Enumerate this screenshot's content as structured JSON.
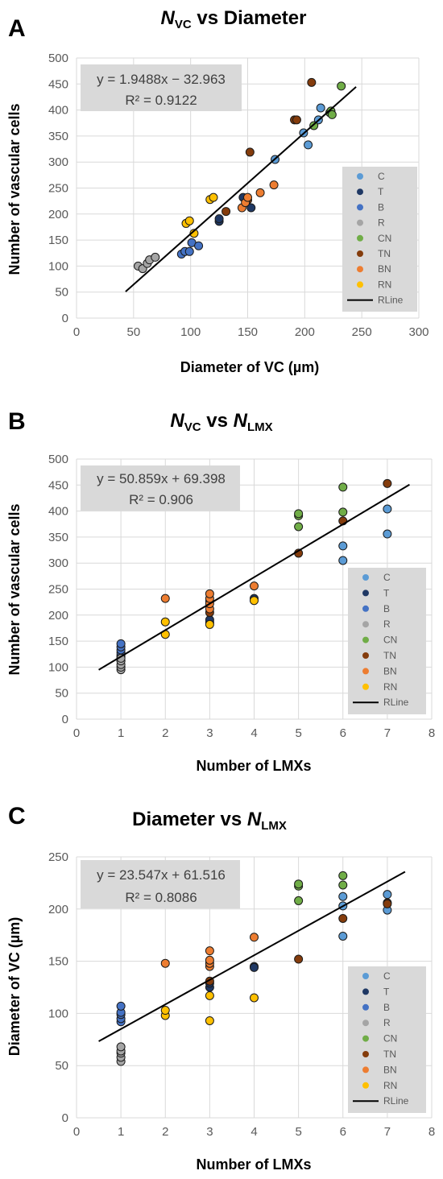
{
  "colors": {
    "C": "#5b9bd5",
    "T": "#1f3864",
    "B": "#4472c4",
    "R": "#a5a5a5",
    "CN": "#70ad47",
    "TN": "#843c0c",
    "BN": "#ed7d31",
    "RN": "#ffc000",
    "RLine": "#000000"
  },
  "legend": [
    "C",
    "T",
    "B",
    "R",
    "CN",
    "TN",
    "BN",
    "RN",
    "RLine"
  ],
  "chart_data": [
    {
      "type": "scatter",
      "panel": "A",
      "title": {
        "main": "N",
        "sub": "VC",
        "rest": " vs Diameter"
      },
      "xlabel": "Diameter of VC (µm)",
      "ylabel": "Number of vascular cells",
      "xlim": [
        0,
        300
      ],
      "xticks": [
        0,
        50,
        100,
        150,
        200,
        250,
        300
      ],
      "ylim": [
        0,
        500
      ],
      "yticks": [
        0,
        50,
        100,
        150,
        200,
        250,
        300,
        350,
        400,
        450,
        500
      ],
      "grid": true,
      "legend_position": "right",
      "equation": "y = 1.9488x − 32.963",
      "r2": "R² = 0.9122",
      "trendline": {
        "x": [
          43,
          245
        ],
        "slope": 1.9488,
        "intercept": -32.963
      },
      "series": [
        {
          "name": "C",
          "points": [
            [
              174,
              305
            ],
            [
              199,
              356
            ],
            [
              203,
              333
            ],
            [
              212,
              381
            ],
            [
              214,
              404
            ]
          ]
        },
        {
          "name": "T",
          "points": [
            [
              125,
              186
            ],
            [
              125,
              191
            ],
            [
              146,
              232
            ],
            [
              153,
              212
            ]
          ]
        },
        {
          "name": "B",
          "points": [
            [
              92,
              123
            ],
            [
              95,
              128
            ],
            [
              99,
              128
            ],
            [
              101,
              145
            ],
            [
              107,
              139
            ]
          ]
        },
        {
          "name": "R",
          "points": [
            [
              54,
              100
            ],
            [
              58,
              95
            ],
            [
              62,
              105
            ],
            [
              64,
              112
            ],
            [
              69,
              117
            ]
          ]
        },
        {
          "name": "CN",
          "points": [
            [
              208,
              370
            ],
            [
              222,
              395
            ],
            [
              223,
              398
            ],
            [
              224,
              391
            ],
            [
              232,
              446
            ]
          ]
        },
        {
          "name": "TN",
          "points": [
            [
              131,
              205
            ],
            [
              150,
              227
            ],
            [
              152,
              319
            ],
            [
              191,
              381
            ],
            [
              193,
              381
            ],
            [
              206,
              453
            ]
          ]
        },
        {
          "name": "BN",
          "points": [
            [
              145,
              212
            ],
            [
              148,
              222
            ],
            [
              150,
              232
            ],
            [
              161,
              241
            ],
            [
              173,
              256
            ]
          ]
        },
        {
          "name": "RN",
          "points": [
            [
              96,
              182
            ],
            [
              99,
              187
            ],
            [
              103,
              163
            ],
            [
              117,
              228
            ],
            [
              120,
              232
            ]
          ]
        }
      ]
    },
    {
      "type": "scatter",
      "panel": "B",
      "title": {
        "main": "N",
        "sub": "VC",
        "mid": " vs ",
        "main2": "N",
        "sub2": "LMX"
      },
      "xlabel": "Number of LMXs",
      "ylabel": "Number of vascular cells",
      "xlim": [
        0,
        8
      ],
      "xticks": [
        0,
        1,
        2,
        3,
        4,
        5,
        6,
        7,
        8
      ],
      "ylim": [
        0,
        500
      ],
      "yticks": [
        0,
        50,
        100,
        150,
        200,
        250,
        300,
        350,
        400,
        450,
        500
      ],
      "grid": true,
      "legend_position": "bottom-right",
      "equation": "y = 50.859x + 69.398",
      "r2": "R² = 0.906",
      "trendline": {
        "x": [
          0.5,
          7.5
        ],
        "slope": 50.859,
        "intercept": 69.398
      },
      "series": [
        {
          "name": "C",
          "points": [
            [
              6,
              305
            ],
            [
              6,
              333
            ],
            [
              7,
              356
            ],
            [
              7,
              404
            ]
          ]
        },
        {
          "name": "T",
          "points": [
            [
              1,
              112
            ],
            [
              1,
              120
            ],
            [
              3,
              186
            ],
            [
              3,
              191
            ],
            [
              4,
              232
            ]
          ]
        },
        {
          "name": "B",
          "points": [
            [
              1,
              123
            ],
            [
              1,
              128
            ],
            [
              1,
              133
            ],
            [
              1,
              139
            ],
            [
              1,
              145
            ]
          ]
        },
        {
          "name": "R",
          "points": [
            [
              1,
              95
            ],
            [
              1,
              100
            ],
            [
              1,
              105
            ],
            [
              1,
              112
            ],
            [
              1,
              117
            ]
          ]
        },
        {
          "name": "CN",
          "points": [
            [
              5,
              370
            ],
            [
              5,
              391
            ],
            [
              5,
              395
            ],
            [
              6,
              398
            ],
            [
              6,
              446
            ]
          ]
        },
        {
          "name": "TN",
          "points": [
            [
              3,
              205
            ],
            [
              3,
              227
            ],
            [
              5,
              319
            ],
            [
              6,
              381
            ],
            [
              7,
              453
            ]
          ]
        },
        {
          "name": "BN",
          "points": [
            [
              2,
              232
            ],
            [
              3,
              212
            ],
            [
              3,
              222
            ],
            [
              3,
              232
            ],
            [
              3,
              241
            ],
            [
              4,
              256
            ]
          ]
        },
        {
          "name": "RN",
          "points": [
            [
              2,
              163
            ],
            [
              2,
              187
            ],
            [
              3,
              182
            ],
            [
              4,
              228
            ]
          ]
        }
      ]
    },
    {
      "type": "scatter",
      "panel": "C",
      "title": {
        "main": "Diameter vs ",
        "main2": "N",
        "sub2": "LMX"
      },
      "xlabel": "Number of LMXs",
      "ylabel": "Diameter of VC (µm)",
      "xlim": [
        0,
        8
      ],
      "xticks": [
        0,
        1,
        2,
        3,
        4,
        5,
        6,
        7,
        8
      ],
      "ylim": [
        0,
        250
      ],
      "yticks": [
        0,
        50,
        100,
        150,
        200,
        250
      ],
      "grid": true,
      "legend_position": "bottom-right",
      "equation": "y = 23.547x + 61.516",
      "r2": "R² = 0.8086",
      "trendline": {
        "x": [
          0.5,
          7.4
        ],
        "slope": 23.547,
        "intercept": 61.516
      },
      "series": [
        {
          "name": "C",
          "points": [
            [
              6,
              174
            ],
            [
              6,
              203
            ],
            [
              6,
              212
            ],
            [
              7,
              199
            ],
            [
              7,
              214
            ]
          ]
        },
        {
          "name": "T",
          "points": [
            [
              3,
              125
            ],
            [
              3,
              129
            ],
            [
              4,
              145
            ],
            [
              4,
              144
            ]
          ]
        },
        {
          "name": "B",
          "points": [
            [
              1,
              92
            ],
            [
              1,
              95
            ],
            [
              1,
              99
            ],
            [
              1,
              101
            ],
            [
              1,
              107
            ]
          ]
        },
        {
          "name": "R",
          "points": [
            [
              1,
              54
            ],
            [
              1,
              58
            ],
            [
              1,
              62
            ],
            [
              1,
              64
            ],
            [
              1,
              68
            ]
          ]
        },
        {
          "name": "CN",
          "points": [
            [
              5,
              208
            ],
            [
              5,
              222
            ],
            [
              5,
              224
            ],
            [
              6,
              223
            ],
            [
              6,
              232
            ]
          ]
        },
        {
          "name": "TN",
          "points": [
            [
              3,
              131
            ],
            [
              5,
              152
            ],
            [
              6,
              191
            ],
            [
              7,
              206
            ],
            [
              7,
              205
            ]
          ]
        },
        {
          "name": "BN",
          "points": [
            [
              2,
              148
            ],
            [
              3,
              145
            ],
            [
              3,
              148
            ],
            [
              3,
              151
            ],
            [
              3,
              160
            ],
            [
              4,
              173
            ]
          ]
        },
        {
          "name": "RN",
          "points": [
            [
              2,
              98
            ],
            [
              2,
              103
            ],
            [
              3,
              93
            ],
            [
              3,
              117
            ],
            [
              4,
              115
            ]
          ]
        }
      ]
    }
  ]
}
